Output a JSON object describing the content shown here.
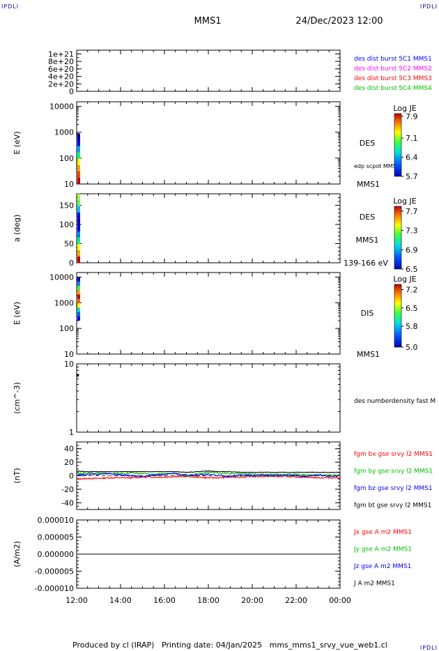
{
  "header": {
    "spacecraft": "MMS1",
    "datetime": "24/Dec/2023 12:00",
    "corner_label": "IPDLI"
  },
  "footer": {
    "text": "Produced by cl (IRAP)   Printing date: 04/Jan/2025   mms_mms1_srvy_vue_web1.cl"
  },
  "colors": {
    "blue": "#0000ff",
    "magenta": "#ff00ff",
    "red": "#ff0000",
    "green": "#00c000",
    "black": "#000000"
  },
  "chart_data": [
    {
      "id": "dist",
      "type": "line",
      "yticks": [
        "1e+21",
        "8e+20",
        "6e+20",
        "4e+20",
        "2e+20",
        "0"
      ],
      "ylim": [
        0,
        1.1e+21
      ],
      "series": [
        {
          "name": "des dist burst 5C1 MMS1",
          "color": "#0000ff",
          "values": []
        },
        {
          "name": "des dist burst 5C2 MMS2",
          "color": "#ff00ff",
          "values": []
        },
        {
          "name": "des dist burst 5C3 MMS3",
          "color": "#ff0000",
          "values": []
        },
        {
          "name": "des dist burst 5C4 MMS4",
          "color": "#00c000",
          "values": []
        }
      ]
    },
    {
      "id": "des_energy",
      "type": "heatmap",
      "ylabel": "E (eV)",
      "yscale": "log",
      "ylim": [
        10,
        15000
      ],
      "yticks": [
        "10000",
        "1000",
        "100",
        "10"
      ],
      "right_labels": [
        "DES",
        "edp scpot MMS1",
        "MMS1"
      ],
      "colorbar": {
        "title": "Log JE",
        "ticks": [
          "7.9",
          "7.1",
          "6.4",
          "5.7"
        ],
        "range": [
          5.7,
          8.0
        ]
      }
    },
    {
      "id": "des_pitch",
      "type": "heatmap",
      "ylabel": "a (deg)",
      "ylim": [
        0,
        180
      ],
      "yticks": [
        "150",
        "100",
        "50",
        "0"
      ],
      "right_labels": [
        "DES",
        "MMS1",
        "139-166 eV"
      ],
      "colorbar": {
        "title": "Log JE",
        "ticks": [
          "7.7",
          "7.3",
          "6.9",
          "6.5"
        ],
        "range": [
          6.5,
          7.8
        ]
      }
    },
    {
      "id": "dis_energy",
      "type": "heatmap",
      "ylabel": "E (eV)",
      "yscale": "log",
      "ylim": [
        10,
        15000
      ],
      "yticks": [
        "10000",
        "1000",
        "100",
        "10"
      ],
      "right_labels": [
        "DIS",
        "MMS1"
      ],
      "colorbar": {
        "title": "Log JE",
        "ticks": [
          "7.2",
          "6.5",
          "5.8",
          "5.0"
        ],
        "range": [
          5.0,
          7.4
        ]
      }
    },
    {
      "id": "density",
      "type": "scatter",
      "ylabel": "(cm^-3)",
      "yscale": "log",
      "ylim": [
        1,
        10
      ],
      "yticks": [
        "10",
        "1"
      ],
      "series": [
        {
          "name": "des numberdensity fast M",
          "color": "#000000",
          "x": [
            12.0
          ],
          "values": [
            6.8
          ]
        }
      ]
    },
    {
      "id": "bfield",
      "type": "line",
      "ylabel": "(nT)",
      "ylim": [
        -50,
        50
      ],
      "yticks": [
        "40",
        "20",
        "0",
        "-20",
        "-40"
      ],
      "series": [
        {
          "name": "fgm bx gse srvy l2 MMS1",
          "color": "#ff0000",
          "x": [
            12,
            12.5,
            13,
            13.5,
            14,
            14.5,
            15,
            15.5,
            16,
            16.5,
            17,
            17.5,
            18,
            18.5,
            19,
            19.5,
            20,
            20.5,
            21,
            21.5,
            22,
            22.5,
            23,
            23.5,
            24
          ],
          "values": [
            -5,
            -4,
            -4,
            -3,
            -3,
            -3,
            -2,
            -2,
            -2,
            -1,
            -1,
            -2,
            -3,
            -3,
            -2,
            -2,
            -1,
            -1,
            -1,
            -1,
            -2,
            -2,
            -3,
            -3,
            -3
          ]
        },
        {
          "name": "fgm by gse srvy l2 MMS1",
          "color": "#00c000",
          "x": [
            12,
            12.5,
            13,
            13.5,
            14,
            14.5,
            15,
            15.5,
            16,
            16.5,
            17,
            17.5,
            18,
            18.5,
            19,
            19.5,
            20,
            20.5,
            21,
            21.5,
            22,
            22.5,
            23,
            23.5,
            24
          ],
          "values": [
            3,
            4,
            4,
            3,
            3,
            4,
            3,
            2,
            3,
            4,
            0,
            3,
            5,
            4,
            3,
            3,
            2,
            2,
            2,
            2,
            2,
            1,
            1,
            1,
            1
          ]
        },
        {
          "name": "fgm bz gse srvy l2 MMS1",
          "color": "#0000ff",
          "x": [
            12,
            12.5,
            13,
            13.5,
            14,
            14.5,
            15,
            15.5,
            16,
            16.5,
            17,
            17.5,
            18,
            18.5,
            19,
            19.5,
            20,
            20.5,
            21,
            21.5,
            22,
            22.5,
            23,
            23.5,
            24
          ],
          "values": [
            1,
            2,
            2,
            3,
            1,
            0,
            -1,
            1,
            2,
            3,
            1,
            1,
            2,
            0,
            -1,
            1,
            0,
            1,
            0,
            1,
            0,
            -1,
            1,
            -1,
            0
          ]
        },
        {
          "name": "fgm bt gse srvy l2 MMS1",
          "color": "#000000",
          "x": [
            12,
            12.5,
            13,
            13.5,
            14,
            14.5,
            15,
            15.5,
            16,
            16.5,
            17,
            17.5,
            18,
            18.5,
            19,
            19.5,
            20,
            20.5,
            21,
            21.5,
            22,
            22.5,
            23,
            23.5,
            24
          ],
          "values": [
            7,
            6,
            6,
            6,
            6,
            6,
            6,
            6,
            6,
            6,
            5,
            6,
            7,
            6,
            6,
            5,
            5,
            5,
            5,
            5,
            5,
            5,
            5,
            5,
            5
          ]
        }
      ]
    },
    {
      "id": "current",
      "type": "line",
      "ylabel": "(A/m2)",
      "ylim": [
        -1e-05,
        1e-05
      ],
      "yticks": [
        "0.000010",
        "0.000005",
        "0.000000",
        "-0.000005",
        "-0.000010"
      ],
      "xticks": [
        "12:00",
        "14:00",
        "16:00",
        "18:00",
        "20:00",
        "22:00",
        "00:00"
      ],
      "series": [
        {
          "name": "Jx gse A m2 MMS1",
          "color": "#ff0000",
          "x": [
            12,
            24
          ],
          "values": [
            0,
            0
          ]
        },
        {
          "name": "Jy gse A m2 MMS1",
          "color": "#00c000",
          "x": [
            12,
            24
          ],
          "values": [
            0,
            0
          ]
        },
        {
          "name": "Jz gse A m2 MMS1",
          "color": "#0000ff",
          "x": [
            12,
            24
          ],
          "values": [
            0,
            0
          ]
        },
        {
          "name": "J A m2 MMS1",
          "color": "#000000",
          "x": [
            12,
            24
          ],
          "values": [
            0,
            0
          ]
        }
      ]
    }
  ]
}
